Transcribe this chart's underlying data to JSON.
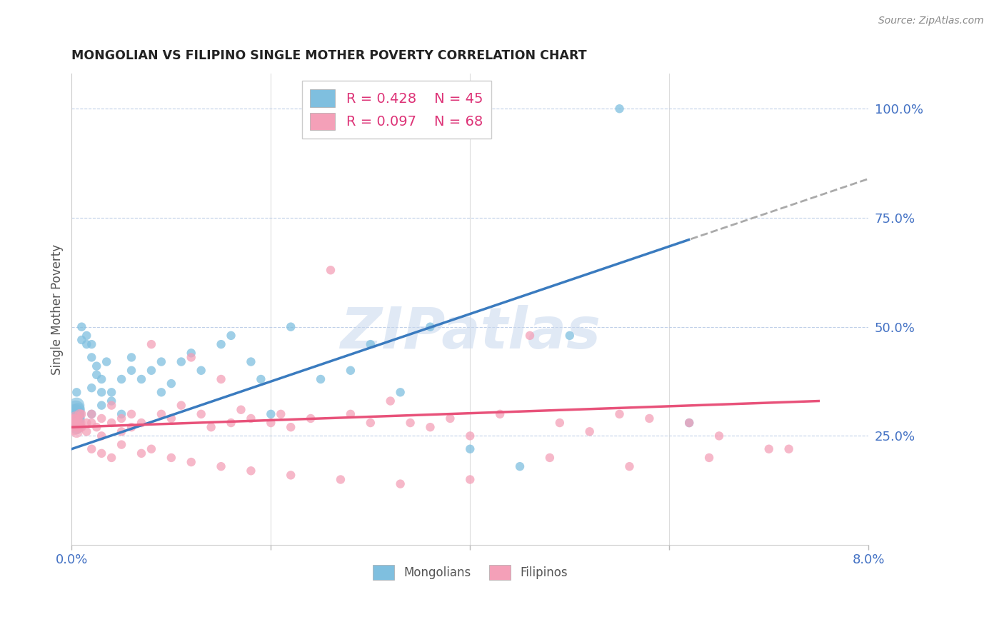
{
  "title": "MONGOLIAN VS FILIPINO SINGLE MOTHER POVERTY CORRELATION CHART",
  "source": "Source: ZipAtlas.com",
  "ylabel": "Single Mother Poverty",
  "ytick_labels": [
    "100.0%",
    "75.0%",
    "50.0%",
    "25.0%"
  ],
  "ytick_values": [
    1.0,
    0.75,
    0.5,
    0.25
  ],
  "watermark": "ZIPatlas",
  "mongolian_R": 0.428,
  "mongolian_N": 45,
  "filipino_R": 0.097,
  "filipino_N": 68,
  "mongolian_color": "#7fbfdf",
  "filipino_color": "#f4a0b8",
  "mongolian_line_color": "#3a7bbf",
  "filipino_line_color": "#e8527a",
  "dashed_line_color": "#aaaaaa",
  "mongolian_line_x0": 0.0,
  "mongolian_line_y0": 0.22,
  "mongolian_line_x1": 0.062,
  "mongolian_line_y1": 0.7,
  "filipino_line_x0": 0.0,
  "filipino_line_y0": 0.27,
  "filipino_line_x1": 0.075,
  "filipino_line_y1": 0.33,
  "mongolian_scatter_x": [
    0.0005,
    0.001,
    0.001,
    0.0015,
    0.0015,
    0.002,
    0.002,
    0.002,
    0.002,
    0.0025,
    0.0025,
    0.003,
    0.003,
    0.003,
    0.0035,
    0.004,
    0.004,
    0.005,
    0.005,
    0.006,
    0.006,
    0.007,
    0.008,
    0.009,
    0.009,
    0.01,
    0.011,
    0.012,
    0.013,
    0.015,
    0.016,
    0.018,
    0.019,
    0.02,
    0.022,
    0.025,
    0.028,
    0.03,
    0.033,
    0.036,
    0.04,
    0.045,
    0.05,
    0.055,
    0.062
  ],
  "mongolian_scatter_y": [
    0.35,
    0.47,
    0.5,
    0.46,
    0.48,
    0.43,
    0.46,
    0.36,
    0.3,
    0.39,
    0.41,
    0.35,
    0.38,
    0.32,
    0.42,
    0.33,
    0.35,
    0.38,
    0.3,
    0.4,
    0.43,
    0.38,
    0.4,
    0.35,
    0.42,
    0.37,
    0.42,
    0.44,
    0.4,
    0.46,
    0.48,
    0.42,
    0.38,
    0.3,
    0.5,
    0.38,
    0.4,
    0.46,
    0.35,
    0.5,
    0.22,
    0.18,
    0.48,
    1.0,
    0.28
  ],
  "mongolian_scatter_sizes": [
    80,
    80,
    80,
    80,
    80,
    80,
    80,
    80,
    80,
    80,
    80,
    80,
    80,
    80,
    80,
    80,
    80,
    80,
    80,
    80,
    80,
    80,
    80,
    80,
    80,
    80,
    80,
    80,
    80,
    80,
    80,
    80,
    80,
    80,
    80,
    80,
    80,
    80,
    80,
    80,
    80,
    80,
    80,
    80,
    80
  ],
  "mongolian_cluster_x": [
    0.0002,
    0.0003,
    0.0004,
    0.0004,
    0.0005,
    0.0005,
    0.0006,
    0.0006,
    0.0007
  ],
  "mongolian_cluster_y": [
    0.29,
    0.3,
    0.31,
    0.28,
    0.32,
    0.27,
    0.31,
    0.3,
    0.29
  ],
  "mongolian_cluster_sizes": [
    500,
    400,
    350,
    300,
    250,
    200,
    180,
    160,
    140
  ],
  "filipino_scatter_x": [
    0.0003,
    0.0005,
    0.001,
    0.001,
    0.0015,
    0.0015,
    0.002,
    0.002,
    0.0025,
    0.003,
    0.003,
    0.004,
    0.004,
    0.005,
    0.005,
    0.006,
    0.006,
    0.007,
    0.008,
    0.009,
    0.01,
    0.011,
    0.012,
    0.013,
    0.014,
    0.015,
    0.016,
    0.017,
    0.018,
    0.02,
    0.021,
    0.022,
    0.024,
    0.026,
    0.028,
    0.03,
    0.032,
    0.034,
    0.036,
    0.038,
    0.04,
    0.043,
    0.046,
    0.049,
    0.052,
    0.055,
    0.058,
    0.062,
    0.065,
    0.07,
    0.002,
    0.003,
    0.004,
    0.005,
    0.007,
    0.008,
    0.01,
    0.012,
    0.015,
    0.018,
    0.022,
    0.027,
    0.033,
    0.04,
    0.048,
    0.056,
    0.064,
    0.072
  ],
  "filipino_scatter_y": [
    0.29,
    0.28,
    0.27,
    0.3,
    0.26,
    0.28,
    0.28,
    0.3,
    0.27,
    0.25,
    0.29,
    0.28,
    0.32,
    0.26,
    0.29,
    0.3,
    0.27,
    0.28,
    0.46,
    0.3,
    0.29,
    0.32,
    0.43,
    0.3,
    0.27,
    0.38,
    0.28,
    0.31,
    0.29,
    0.28,
    0.3,
    0.27,
    0.29,
    0.63,
    0.3,
    0.28,
    0.33,
    0.28,
    0.27,
    0.29,
    0.25,
    0.3,
    0.48,
    0.28,
    0.26,
    0.3,
    0.29,
    0.28,
    0.25,
    0.22,
    0.22,
    0.21,
    0.2,
    0.23,
    0.21,
    0.22,
    0.2,
    0.19,
    0.18,
    0.17,
    0.16,
    0.15,
    0.14,
    0.15,
    0.2,
    0.18,
    0.2,
    0.22
  ],
  "filipino_cluster_x": [
    0.0002,
    0.0003,
    0.0004,
    0.0005,
    0.0006,
    0.0007,
    0.0008,
    0.0009
  ],
  "filipino_cluster_y": [
    0.28,
    0.27,
    0.29,
    0.26,
    0.28,
    0.27,
    0.3,
    0.28
  ],
  "filipino_cluster_sizes": [
    300,
    250,
    200,
    160,
    140,
    120,
    100,
    90
  ],
  "xlim": [
    0.0,
    0.08
  ],
  "ylim": [
    0.0,
    1.08
  ],
  "xtick_positions": [
    0.0,
    0.02,
    0.04,
    0.06,
    0.08
  ]
}
